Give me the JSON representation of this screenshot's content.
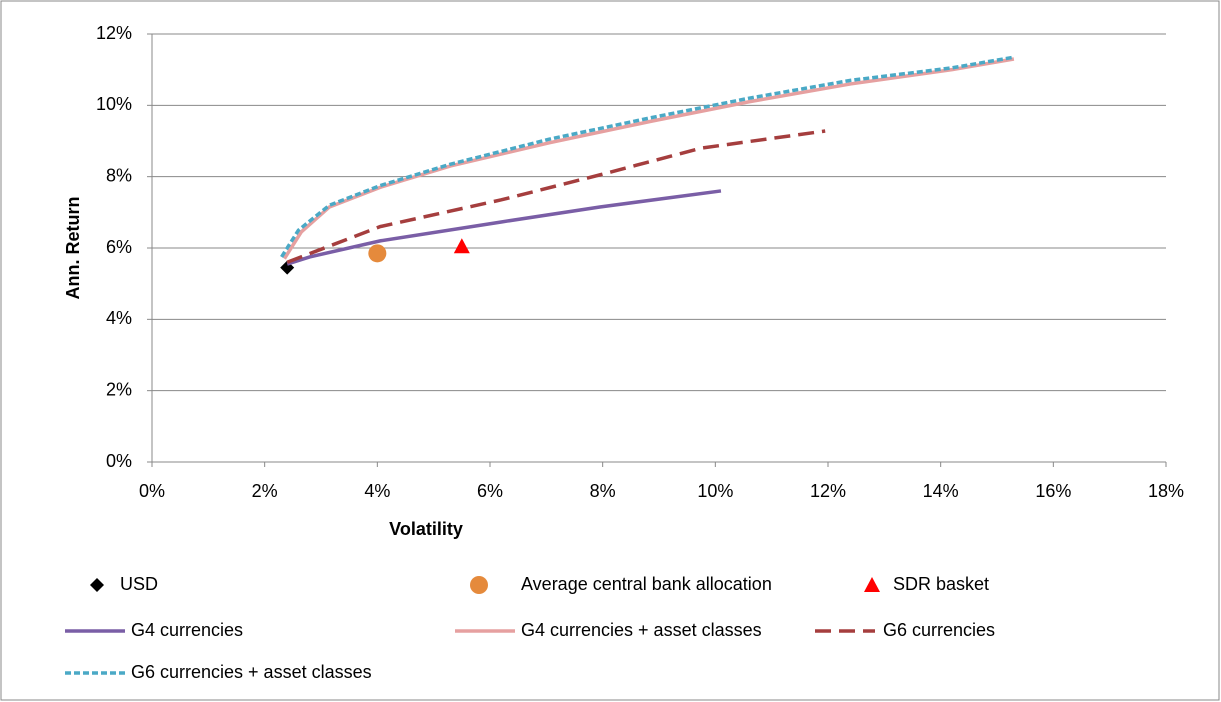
{
  "chart_data": {
    "type": "line",
    "xlabel": "Volatility",
    "ylabel": "Ann. Return",
    "xlim": [
      0,
      18
    ],
    "ylim": [
      0,
      12
    ],
    "xticks": [
      {
        "value": 0,
        "label": "0%"
      },
      {
        "value": 2,
        "label": "2%"
      },
      {
        "value": 4,
        "label": "4%"
      },
      {
        "value": 6,
        "label": "6%"
      },
      {
        "value": 8,
        "label": "8%"
      },
      {
        "value": 10,
        "label": "10%"
      },
      {
        "value": 12,
        "label": "12%"
      },
      {
        "value": 14,
        "label": "14%"
      },
      {
        "value": 16,
        "label": "16%"
      },
      {
        "value": 18,
        "label": "18%"
      }
    ],
    "yticks": [
      {
        "value": 0,
        "label": "0%"
      },
      {
        "value": 2,
        "label": "2%"
      },
      {
        "value": 4,
        "label": "4%"
      },
      {
        "value": 6,
        "label": "6%"
      },
      {
        "value": 8,
        "label": "8%"
      },
      {
        "value": 10,
        "label": "10%"
      },
      {
        "value": 12,
        "label": "12%"
      }
    ],
    "grid": true,
    "series": [
      {
        "name": "USD",
        "color": "#000000",
        "marker": "diamond",
        "x": [
          2.4
        ],
        "values": [
          5.45
        ]
      },
      {
        "name": "Average central bank allocation",
        "color": "#e58a3c",
        "marker": "circle",
        "x": [
          4.0
        ],
        "values": [
          5.85
        ]
      },
      {
        "name": "SDR basket",
        "color": "#ff0000",
        "marker": "triangle",
        "x": [
          5.5
        ],
        "values": [
          6.05
        ]
      },
      {
        "name": "G4 currencies",
        "color": "#7a5ea6",
        "line": "solid",
        "x": [
          2.4,
          2.8,
          4.05,
          6.2,
          7.95,
          10.1
        ],
        "values": [
          5.55,
          5.75,
          6.2,
          6.73,
          7.15,
          7.6
        ]
      },
      {
        "name": "G4 currencies + asset classes",
        "color": "#e6a0a0",
        "line": "solid",
        "x": [
          2.35,
          2.65,
          3.15,
          4.05,
          5.3,
          7.05,
          8.85,
          10.6,
          12.4,
          14.2,
          15.3
        ],
        "values": [
          5.7,
          6.45,
          7.15,
          7.7,
          8.3,
          8.95,
          9.55,
          10.1,
          10.6,
          11.0,
          11.3
        ]
      },
      {
        "name": "G6 currencies",
        "color": "#a53e3e",
        "line": "dashed",
        "x": [
          2.4,
          4.05,
          6.2,
          7.95,
          9.75,
          11.95
        ],
        "values": [
          5.6,
          6.6,
          7.35,
          8.05,
          8.8,
          9.28
        ]
      },
      {
        "name": "G6 currencies + asset classes",
        "color": "#4aa9c6",
        "line": "dotted",
        "x": [
          2.3,
          2.6,
          3.15,
          4.05,
          5.3,
          7.05,
          8.85,
          10.6,
          12.4,
          14.2,
          15.3
        ],
        "values": [
          5.75,
          6.5,
          7.2,
          7.75,
          8.35,
          9.05,
          9.65,
          10.2,
          10.7,
          11.05,
          11.35
        ]
      }
    ]
  }
}
